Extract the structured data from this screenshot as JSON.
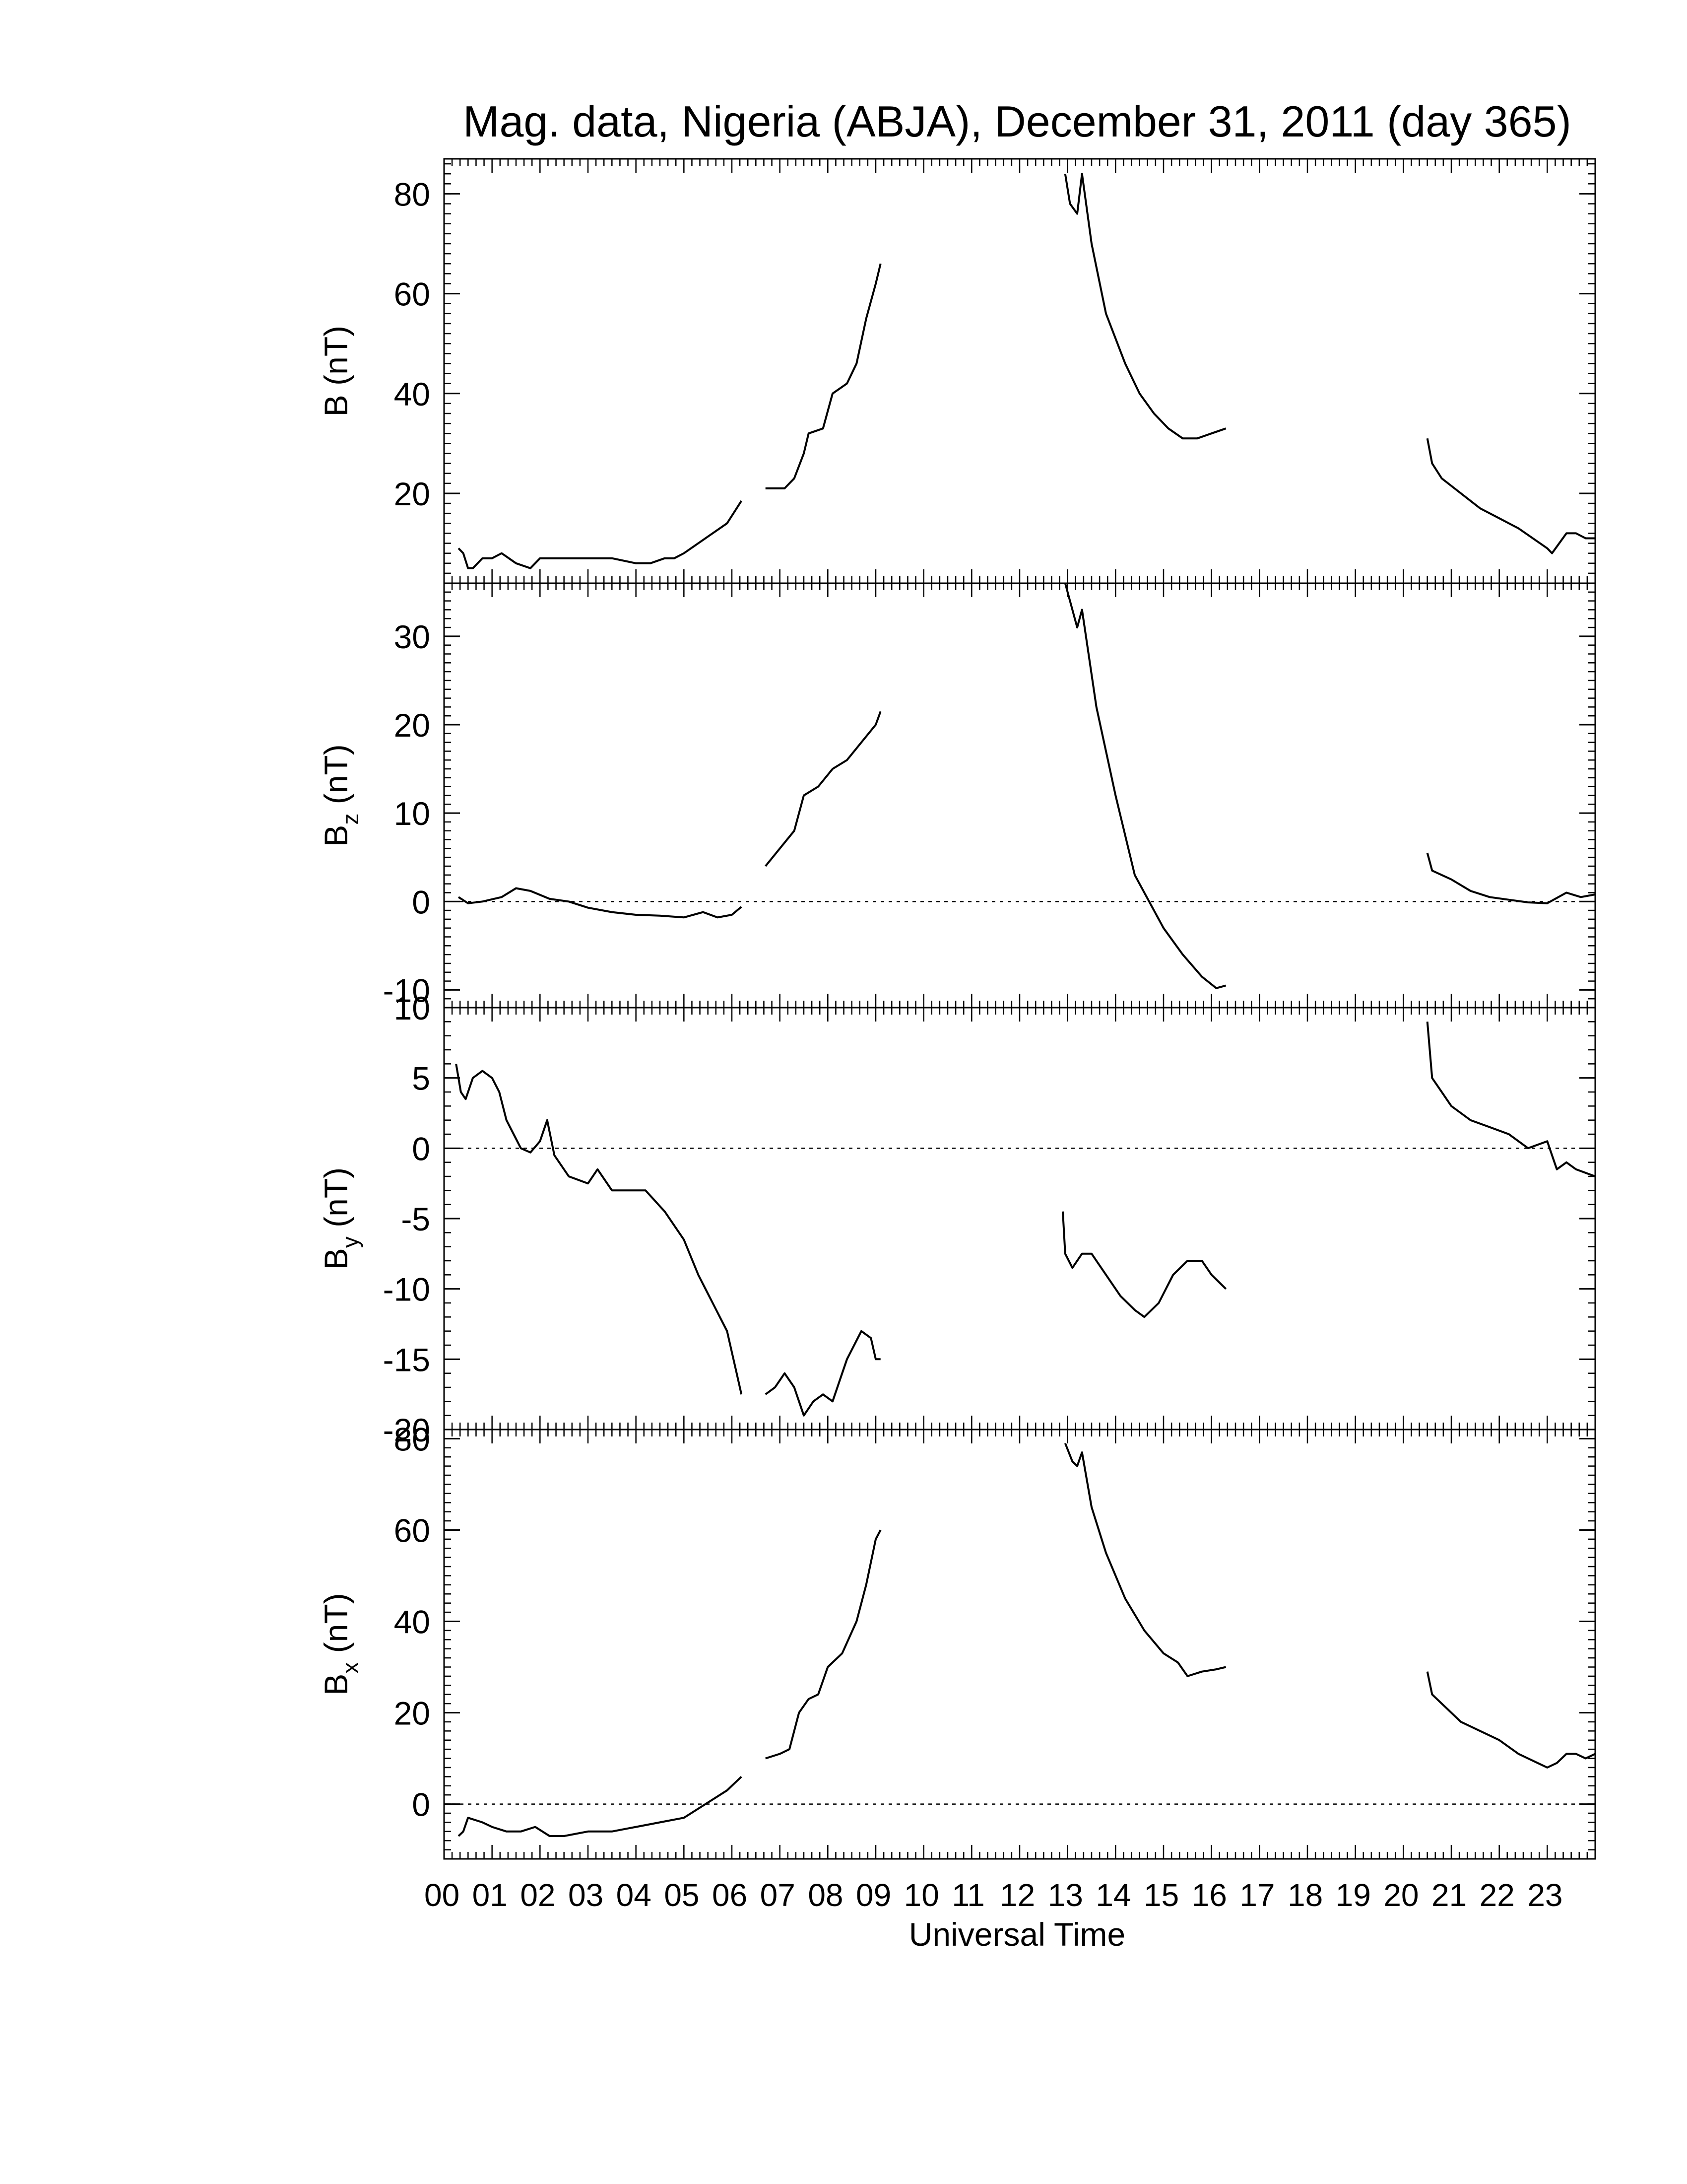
{
  "figure": {
    "title": "Mag. data, Nigeria (ABJA), December 31, 2011 (day 365)",
    "xlabel": "Universal Time",
    "x_tick_labels": [
      "00",
      "01",
      "02",
      "03",
      "04",
      "05",
      "06",
      "07",
      "08",
      "09",
      "10",
      "11",
      "12",
      "13",
      "14",
      "15",
      "16",
      "17",
      "18",
      "19",
      "20",
      "21",
      "22",
      "23"
    ]
  },
  "chart_data": [
    {
      "type": "line",
      "panel": "B",
      "ylabel_main": "B",
      "ylabel_sub": "",
      "ylabel_unit": "(nT)",
      "xlim": [
        0,
        24
      ],
      "ylim": [
        2,
        87
      ],
      "yticks": [
        20,
        40,
        60,
        80
      ],
      "zero_line": false,
      "segments": [
        [
          [
            0.3,
            9
          ],
          [
            0.4,
            8
          ],
          [
            0.5,
            5
          ],
          [
            0.6,
            5
          ],
          [
            0.8,
            7
          ],
          [
            1.0,
            7
          ],
          [
            1.2,
            8
          ],
          [
            1.5,
            6
          ],
          [
            1.8,
            5
          ],
          [
            2.0,
            7
          ],
          [
            2.3,
            7
          ],
          [
            2.6,
            7
          ],
          [
            3.0,
            7
          ],
          [
            3.5,
            7
          ],
          [
            4.0,
            6
          ],
          [
            4.3,
            6
          ],
          [
            4.6,
            7
          ],
          [
            4.8,
            7
          ],
          [
            5.0,
            8
          ],
          [
            5.3,
            10
          ],
          [
            5.6,
            12
          ],
          [
            5.9,
            14
          ],
          [
            6.1,
            17
          ],
          [
            6.2,
            18.5
          ]
        ],
        [
          [
            6.7,
            21
          ],
          [
            6.9,
            21
          ],
          [
            7.1,
            21
          ],
          [
            7.3,
            23
          ],
          [
            7.5,
            28
          ],
          [
            7.6,
            32
          ],
          [
            7.9,
            33
          ],
          [
            8.1,
            40
          ],
          [
            8.4,
            42
          ],
          [
            8.6,
            46
          ],
          [
            8.8,
            55
          ],
          [
            9.0,
            62
          ],
          [
            9.1,
            66
          ]
        ],
        [
          [
            12.95,
            84
          ],
          [
            13.05,
            78
          ],
          [
            13.2,
            76
          ],
          [
            13.3,
            84
          ],
          [
            13.5,
            70
          ],
          [
            13.8,
            56
          ],
          [
            14.2,
            46
          ],
          [
            14.5,
            40
          ],
          [
            14.8,
            36
          ],
          [
            15.1,
            33
          ],
          [
            15.4,
            31
          ],
          [
            15.7,
            31
          ],
          [
            16.0,
            32
          ],
          [
            16.3,
            33
          ]
        ],
        [
          [
            20.5,
            31
          ],
          [
            20.6,
            26
          ],
          [
            20.8,
            23
          ],
          [
            21.2,
            20
          ],
          [
            21.6,
            17
          ],
          [
            22.0,
            15
          ],
          [
            22.4,
            13
          ],
          [
            22.7,
            11
          ],
          [
            23.0,
            9
          ],
          [
            23.1,
            8
          ],
          [
            23.4,
            12
          ],
          [
            23.6,
            12
          ],
          [
            23.8,
            11
          ],
          [
            24.0,
            11
          ]
        ]
      ]
    },
    {
      "type": "line",
      "panel": "Bz",
      "ylabel_main": "B",
      "ylabel_sub": "z",
      "ylabel_unit": "(nT)",
      "xlim": [
        0,
        24
      ],
      "ylim": [
        -12,
        36
      ],
      "yticks": [
        -10,
        0,
        10,
        20,
        30
      ],
      "zero_line": true,
      "segments": [
        [
          [
            0.3,
            0.5
          ],
          [
            0.5,
            -0.2
          ],
          [
            0.8,
            0
          ],
          [
            1.2,
            0.5
          ],
          [
            1.5,
            1.5
          ],
          [
            1.8,
            1.2
          ],
          [
            2.2,
            0.3
          ],
          [
            2.6,
            0
          ],
          [
            3.0,
            -0.7
          ],
          [
            3.5,
            -1.2
          ],
          [
            4.0,
            -1.5
          ],
          [
            4.5,
            -1.6
          ],
          [
            5.0,
            -1.8
          ],
          [
            5.4,
            -1.2
          ],
          [
            5.7,
            -1.8
          ],
          [
            6.0,
            -1.5
          ],
          [
            6.2,
            -0.6
          ]
        ],
        [
          [
            6.7,
            4
          ],
          [
            7.0,
            6
          ],
          [
            7.3,
            8
          ],
          [
            7.5,
            12
          ],
          [
            7.8,
            13
          ],
          [
            8.1,
            15
          ],
          [
            8.4,
            16
          ],
          [
            8.7,
            18
          ],
          [
            9.0,
            20
          ],
          [
            9.1,
            21.5
          ]
        ],
        [
          [
            12.95,
            36
          ],
          [
            13.1,
            33
          ],
          [
            13.2,
            31
          ],
          [
            13.3,
            33
          ],
          [
            13.6,
            22
          ],
          [
            14.0,
            12
          ],
          [
            14.4,
            3
          ],
          [
            14.7,
            0
          ],
          [
            15.0,
            -3
          ],
          [
            15.4,
            -6
          ],
          [
            15.8,
            -8.5
          ],
          [
            16.1,
            -9.8
          ],
          [
            16.3,
            -9.5
          ]
        ],
        [
          [
            20.5,
            5.5
          ],
          [
            20.6,
            3.5
          ],
          [
            21.0,
            2.5
          ],
          [
            21.4,
            1.2
          ],
          [
            21.8,
            0.5
          ],
          [
            22.2,
            0.2
          ],
          [
            22.6,
            -0.1
          ],
          [
            23.0,
            -0.2
          ],
          [
            23.4,
            1
          ],
          [
            23.7,
            0.5
          ],
          [
            24.0,
            0.8
          ]
        ]
      ]
    },
    {
      "type": "line",
      "panel": "By",
      "ylabel_main": "B",
      "ylabel_sub": "y",
      "ylabel_unit": "(nT)",
      "xlim": [
        0,
        24
      ],
      "ylim": [
        -20,
        10
      ],
      "yticks": [
        -20,
        -15,
        -10,
        -5,
        0,
        5,
        10
      ],
      "zero_line": true,
      "segments": [
        [
          [
            0.25,
            6
          ],
          [
            0.35,
            4
          ],
          [
            0.45,
            3.5
          ],
          [
            0.6,
            5
          ],
          [
            0.8,
            5.5
          ],
          [
            1.0,
            5
          ],
          [
            1.15,
            4
          ],
          [
            1.3,
            2
          ],
          [
            1.45,
            1
          ],
          [
            1.6,
            0
          ],
          [
            1.8,
            -0.3
          ],
          [
            2.0,
            0.5
          ],
          [
            2.15,
            2
          ],
          [
            2.3,
            -0.5
          ],
          [
            2.6,
            -2
          ],
          [
            3.0,
            -2.5
          ],
          [
            3.2,
            -1.5
          ],
          [
            3.5,
            -3
          ],
          [
            3.8,
            -3
          ],
          [
            4.2,
            -3
          ],
          [
            4.6,
            -4.5
          ],
          [
            5.0,
            -6.5
          ],
          [
            5.3,
            -9
          ],
          [
            5.6,
            -11
          ],
          [
            5.9,
            -13
          ],
          [
            6.1,
            -16
          ],
          [
            6.2,
            -17.5
          ]
        ],
        [
          [
            6.7,
            -17.5
          ],
          [
            6.9,
            -17
          ],
          [
            7.1,
            -16
          ],
          [
            7.3,
            -17
          ],
          [
            7.5,
            -19
          ],
          [
            7.7,
            -18
          ],
          [
            7.9,
            -17.5
          ],
          [
            8.1,
            -18
          ],
          [
            8.4,
            -15
          ],
          [
            8.7,
            -13
          ],
          [
            8.9,
            -13.5
          ],
          [
            9.0,
            -15
          ],
          [
            9.1,
            -15
          ]
        ],
        [
          [
            12.9,
            -4.5
          ],
          [
            12.95,
            -7.5
          ],
          [
            13.1,
            -8.5
          ],
          [
            13.3,
            -7.5
          ],
          [
            13.5,
            -7.5
          ],
          [
            13.8,
            -9
          ],
          [
            14.1,
            -10.5
          ],
          [
            14.4,
            -11.5
          ],
          [
            14.6,
            -12
          ],
          [
            14.9,
            -11
          ],
          [
            15.2,
            -9
          ],
          [
            15.5,
            -8
          ],
          [
            15.8,
            -8
          ],
          [
            16.0,
            -9
          ],
          [
            16.3,
            -10
          ]
        ],
        [
          [
            20.5,
            9
          ],
          [
            20.6,
            5
          ],
          [
            20.8,
            4
          ],
          [
            21.0,
            3
          ],
          [
            21.4,
            2
          ],
          [
            21.8,
            1.5
          ],
          [
            22.2,
            1
          ],
          [
            22.6,
            0
          ],
          [
            23.0,
            0.5
          ],
          [
            23.2,
            -1.5
          ],
          [
            23.4,
            -1
          ],
          [
            23.6,
            -1.5
          ],
          [
            24.0,
            -2
          ]
        ]
      ]
    },
    {
      "type": "line",
      "panel": "Bx",
      "ylabel_main": "B",
      "ylabel_sub": "x",
      "ylabel_unit": "(nT)",
      "xlim": [
        0,
        24
      ],
      "ylim": [
        -12,
        82
      ],
      "yticks": [
        0,
        20,
        40,
        60,
        80
      ],
      "zero_line": true,
      "segments": [
        [
          [
            0.3,
            -7
          ],
          [
            0.4,
            -6
          ],
          [
            0.5,
            -3
          ],
          [
            0.8,
            -4
          ],
          [
            1.0,
            -5
          ],
          [
            1.3,
            -6
          ],
          [
            1.6,
            -6
          ],
          [
            1.9,
            -5
          ],
          [
            2.2,
            -7
          ],
          [
            2.5,
            -7
          ],
          [
            3.0,
            -6
          ],
          [
            3.5,
            -6
          ],
          [
            4.0,
            -5
          ],
          [
            4.5,
            -4
          ],
          [
            5.0,
            -3
          ],
          [
            5.3,
            -1
          ],
          [
            5.6,
            1
          ],
          [
            5.9,
            3
          ],
          [
            6.1,
            5
          ],
          [
            6.2,
            6
          ]
        ],
        [
          [
            6.7,
            10
          ],
          [
            7.0,
            11
          ],
          [
            7.2,
            12
          ],
          [
            7.4,
            20
          ],
          [
            7.6,
            23
          ],
          [
            7.8,
            24
          ],
          [
            8.0,
            30
          ],
          [
            8.3,
            33
          ],
          [
            8.6,
            40
          ],
          [
            8.8,
            48
          ],
          [
            9.0,
            58
          ],
          [
            9.1,
            60
          ]
        ],
        [
          [
            12.95,
            79
          ],
          [
            13.1,
            75
          ],
          [
            13.2,
            74
          ],
          [
            13.3,
            77
          ],
          [
            13.5,
            65
          ],
          [
            13.8,
            55
          ],
          [
            14.2,
            45
          ],
          [
            14.6,
            38
          ],
          [
            15.0,
            33
          ],
          [
            15.3,
            31
          ],
          [
            15.5,
            28
          ],
          [
            15.8,
            29
          ],
          [
            16.1,
            29.5
          ],
          [
            16.3,
            30
          ]
        ],
        [
          [
            20.5,
            29
          ],
          [
            20.6,
            24
          ],
          [
            20.9,
            21
          ],
          [
            21.2,
            18
          ],
          [
            21.6,
            16
          ],
          [
            22.0,
            14
          ],
          [
            22.4,
            11
          ],
          [
            22.8,
            9
          ],
          [
            23.0,
            8
          ],
          [
            23.2,
            9
          ],
          [
            23.4,
            11
          ],
          [
            23.6,
            11
          ],
          [
            23.8,
            10
          ],
          [
            24.0,
            11
          ]
        ]
      ]
    }
  ]
}
